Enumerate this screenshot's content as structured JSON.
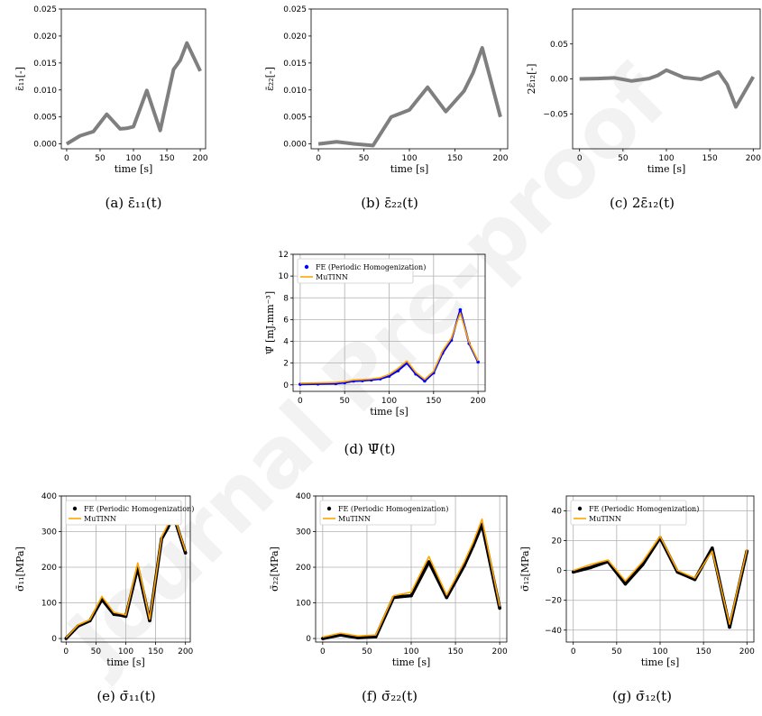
{
  "watermark": "Journal Pre-proof",
  "colors": {
    "strain": "#7f7f7f",
    "fe": "#000000",
    "fe_energy": "#0000ff",
    "mutinn": "#ffa500",
    "grid": "#b0b0b0"
  },
  "chart_data": [
    {
      "id": "a",
      "type": "line",
      "caption": "(a)  ε̄₁₁(t)",
      "xlabel": "time [s]",
      "ylabel": "ε̄₁₁[-]",
      "xlim": [
        -8,
        208
      ],
      "ylim": [
        -0.0009,
        0.025
      ],
      "xticks": [
        0,
        50,
        100,
        150,
        200
      ],
      "xticklabels": [
        "0",
        "50",
        "100",
        "150",
        "200"
      ],
      "yticks": [
        0,
        0.005,
        0.01,
        0.015,
        0.02,
        0.025
      ],
      "yticklabels": [
        "0.000",
        "0.005",
        "0.010",
        "0.015",
        "0.020",
        "0.025"
      ],
      "grid": false,
      "legend": null,
      "series": [
        {
          "style": "thick",
          "color": "#7f7f7f",
          "x": [
            0,
            20,
            40,
            60,
            80,
            90,
            100,
            120,
            140,
            160,
            170,
            180,
            200
          ],
          "y": [
            0,
            0.0015,
            0.0023,
            0.0055,
            0.0028,
            0.0029,
            0.0032,
            0.0099,
            0.0025,
            0.0138,
            0.0155,
            0.0187,
            0.0135
          ]
        }
      ]
    },
    {
      "id": "b",
      "type": "line",
      "caption": "(b) ε̄₂₂(t)",
      "xlabel": "time [s]",
      "ylabel": "ε̄₂₂[-]",
      "xlim": [
        -8,
        208
      ],
      "ylim": [
        -0.0009,
        0.025
      ],
      "xticks": [
        0,
        50,
        100,
        150,
        200
      ],
      "xticklabels": [
        "0",
        "50",
        "100",
        "150",
        "200"
      ],
      "yticks": [
        0,
        0.005,
        0.01,
        0.015,
        0.02,
        0.025
      ],
      "yticklabels": [
        "0.000",
        "0.005",
        "0.010",
        "0.015",
        "0.020",
        "0.025"
      ],
      "grid": false,
      "legend": null,
      "series": [
        {
          "style": "thick",
          "color": "#7f7f7f",
          "x": [
            0,
            20,
            40,
            60,
            80,
            100,
            120,
            140,
            160,
            170,
            180,
            200
          ],
          "y": [
            0,
            0.0004,
            0,
            -0.0003,
            0.005,
            0.0063,
            0.0105,
            0.006,
            0.0098,
            0.0132,
            0.0178,
            0.005
          ]
        }
      ]
    },
    {
      "id": "c",
      "type": "line",
      "caption": "(c) 2ε̄₁₂(t)",
      "xlabel": "time [s]",
      "ylabel": "2ε̄₁₂[-]",
      "xlim": [
        -8,
        208
      ],
      "ylim": [
        -0.1,
        0.1
      ],
      "xticks": [
        0,
        50,
        100,
        150,
        200
      ],
      "xticklabels": [
        "0",
        "50",
        "100",
        "150",
        "200"
      ],
      "yticks": [
        -0.05,
        0,
        0.05
      ],
      "yticklabels": [
        "−0.05",
        "0.00",
        "0.05"
      ],
      "grid": false,
      "legend": null,
      "series": [
        {
          "style": "thick",
          "color": "#7f7f7f",
          "x": [
            0,
            20,
            40,
            60,
            80,
            90,
            100,
            120,
            140,
            160,
            170,
            180,
            200
          ],
          "y": [
            0,
            0.0005,
            0.0015,
            -0.003,
            0.0005,
            0.005,
            0.0125,
            0.002,
            -0.0005,
            0.01,
            -0.008,
            -0.04,
            0.003
          ]
        }
      ]
    },
    {
      "id": "d",
      "type": "line",
      "caption": "(d) Ψ̄(t)",
      "xlabel": "time [s]",
      "ylabel": "Ψ̄ [mJ.mm⁻³]",
      "xlim": [
        -8,
        208
      ],
      "ylim": [
        -0.6,
        12
      ],
      "xticks": [
        0,
        50,
        100,
        150,
        200
      ],
      "xticklabels": [
        "0",
        "50",
        "100",
        "150",
        "200"
      ],
      "yticks": [
        0,
        2,
        4,
        6,
        8,
        10,
        12
      ],
      "yticklabels": [
        "0",
        "2",
        "4",
        "6",
        "8",
        "10",
        "12"
      ],
      "grid": true,
      "legend": [
        "FE  (Periodic Homogenization)",
        "MuTINN"
      ],
      "series": [
        {
          "name": "FE  (Periodic Homogenization)",
          "style": "dots",
          "color": "#0000ff",
          "x": [
            0,
            20,
            40,
            50,
            60,
            70,
            80,
            90,
            100,
            110,
            120,
            130,
            140,
            150,
            160,
            170,
            180,
            190,
            200
          ],
          "y": [
            0.05,
            0.08,
            0.12,
            0.2,
            0.35,
            0.38,
            0.45,
            0.55,
            0.8,
            1.3,
            2.0,
            1.0,
            0.35,
            1.1,
            2.9,
            4.1,
            6.9,
            3.8,
            2.1
          ]
        },
        {
          "name": "MuTINN",
          "style": "line",
          "color": "#ffa500",
          "x": [
            0,
            20,
            40,
            50,
            60,
            70,
            80,
            90,
            100,
            110,
            120,
            130,
            140,
            150,
            160,
            170,
            180,
            190,
            200
          ],
          "y": [
            0.15,
            0.18,
            0.22,
            0.3,
            0.45,
            0.48,
            0.55,
            0.65,
            0.95,
            1.5,
            2.2,
            1.15,
            0.5,
            1.25,
            3.1,
            4.3,
            6.6,
            3.9,
            2.2
          ]
        }
      ]
    },
    {
      "id": "e",
      "type": "line",
      "caption": "(e) σ̄₁₁(t)",
      "xlabel": "time [s]",
      "ylabel": "σ̄₁₁[MPa]",
      "xlim": [
        -8,
        208
      ],
      "ylim": [
        -10,
        400
      ],
      "xticks": [
        0,
        50,
        100,
        150,
        200
      ],
      "xticklabels": [
        "0",
        "50",
        "100",
        "150",
        "200"
      ],
      "yticks": [
        0,
        100,
        200,
        300,
        400
      ],
      "yticklabels": [
        "0",
        "100",
        "200",
        "300",
        "400"
      ],
      "grid": true,
      "legend": [
        "FE  (Periodic Homogenization)",
        "MuTINN"
      ],
      "series": [
        {
          "name": "FE  (Periodic Homogenization)",
          "style": "dots",
          "color": "#000000",
          "x": [
            0,
            20,
            40,
            60,
            80,
            90,
            100,
            120,
            140,
            160,
            170,
            180,
            200
          ],
          "y": [
            0,
            35,
            50,
            110,
            68,
            66,
            62,
            200,
            50,
            280,
            310,
            345,
            240
          ]
        },
        {
          "name": "MuTINN",
          "style": "line",
          "color": "#ffa500",
          "x": [
            0,
            20,
            40,
            60,
            80,
            90,
            100,
            120,
            140,
            160,
            170,
            180,
            200
          ],
          "y": [
            2,
            38,
            53,
            118,
            73,
            70,
            66,
            212,
            54,
            285,
            318,
            348,
            245
          ]
        }
      ]
    },
    {
      "id": "f",
      "type": "line",
      "caption": "(f) σ̄₂₂(t)",
      "xlabel": "time [s]",
      "ylabel": "σ̄₂₂[MPa]",
      "xlim": [
        -8,
        208
      ],
      "ylim": [
        -10,
        400
      ],
      "xticks": [
        0,
        50,
        100,
        150,
        200
      ],
      "xticklabels": [
        "0",
        "50",
        "100",
        "150",
        "200"
      ],
      "yticks": [
        0,
        100,
        200,
        300,
        400
      ],
      "yticklabels": [
        "0",
        "100",
        "200",
        "300",
        "400"
      ],
      "grid": true,
      "legend": [
        "FE  (Periodic Homogenization)",
        "MuTINN"
      ],
      "series": [
        {
          "name": "FE  (Periodic Homogenization)",
          "style": "dots",
          "color": "#000000",
          "x": [
            0,
            20,
            40,
            60,
            80,
            90,
            100,
            120,
            140,
            160,
            170,
            180,
            200
          ],
          "y": [
            0,
            10,
            2,
            5,
            115,
            118,
            120,
            215,
            115,
            205,
            260,
            320,
            85
          ]
        },
        {
          "name": "MuTINN",
          "style": "line",
          "color": "#ffa500",
          "x": [
            0,
            20,
            40,
            60,
            80,
            90,
            100,
            120,
            140,
            160,
            170,
            180,
            200
          ],
          "y": [
            4,
            15,
            7,
            10,
            120,
            125,
            130,
            230,
            122,
            215,
            270,
            335,
            90
          ]
        }
      ]
    },
    {
      "id": "g",
      "type": "line",
      "caption": "(g) σ̄₁₂(t)",
      "xlabel": "time [s]",
      "ylabel": "σ̄₁₂[MPa]",
      "xlim": [
        -8,
        208
      ],
      "ylim": [
        -48,
        50
      ],
      "xticks": [
        0,
        50,
        100,
        150,
        200
      ],
      "xticklabels": [
        "0",
        "50",
        "100",
        "150",
        "200"
      ],
      "yticks": [
        -40,
        -20,
        0,
        20,
        40
      ],
      "yticklabels": [
        "−40",
        "−20",
        "0",
        "20",
        "40"
      ],
      "grid": true,
      "legend": [
        "FE  (Periodic Homogenization)",
        "MuTINN"
      ],
      "series": [
        {
          "name": "FE  (Periodic Homogenization)",
          "style": "dots",
          "color": "#000000",
          "x": [
            0,
            20,
            40,
            60,
            80,
            100,
            120,
            140,
            160,
            180,
            200
          ],
          "y": [
            -1,
            2,
            6,
            -9,
            4,
            22,
            -1,
            -6,
            15,
            -38,
            13
          ]
        },
        {
          "name": "MuTINN",
          "style": "line",
          "color": "#ffa500",
          "x": [
            0,
            20,
            40,
            60,
            80,
            100,
            120,
            140,
            160,
            180,
            200
          ],
          "y": [
            0,
            4,
            7,
            -7,
            6,
            23,
            0,
            -5,
            13,
            -36,
            14
          ]
        }
      ]
    }
  ]
}
